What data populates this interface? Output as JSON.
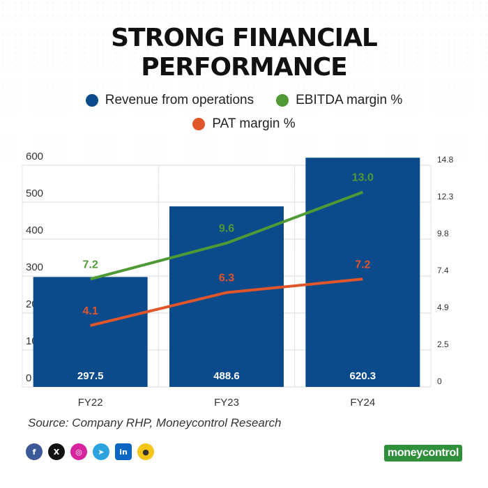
{
  "title_line1": "STRONG FINANCIAL",
  "title_line2": "PERFORMANCE",
  "legend": {
    "revenue": "Revenue from operations",
    "ebitda": "EBITDA margin %",
    "pat": "PAT margin %"
  },
  "colors": {
    "revenue": "#0b4a8b",
    "ebitda": "#4f9a35",
    "pat": "#e0562a"
  },
  "chart_data": {
    "type": "bar",
    "categories": [
      "FY22",
      "FY23",
      "FY24"
    ],
    "series": [
      {
        "name": "Revenue from operations",
        "type": "bar",
        "axis": "left",
        "values": [
          297.5,
          488.6,
          620.3
        ],
        "labels": [
          "297.5",
          "488.6",
          "620.3"
        ]
      },
      {
        "name": "EBITDA margin %",
        "type": "line",
        "axis": "right",
        "values": [
          7.2,
          9.6,
          13.0
        ],
        "labels": [
          "7.2",
          "9.6",
          "13.0"
        ]
      },
      {
        "name": "PAT margin %",
        "type": "line",
        "axis": "right",
        "values": [
          4.1,
          6.3,
          7.2
        ],
        "labels": [
          "4.1",
          "6.3",
          "7.2"
        ]
      }
    ],
    "y_left": {
      "ticks": [
        "0",
        "100",
        "200",
        "300",
        "400",
        "500",
        "600"
      ],
      "range": [
        0,
        600
      ]
    },
    "y_right": {
      "ticks": [
        "0",
        "2.5",
        "4.9",
        "7.4",
        "9.8",
        "12.3",
        "14.8"
      ],
      "range": [
        0,
        14.8
      ]
    },
    "grid": true,
    "legend_position": "top"
  },
  "source": "Source: Company RHP, Moneycontrol Research",
  "socials": [
    "f",
    "X",
    "ig",
    "tg",
    "in",
    "kt"
  ],
  "brand": "moneycontrol"
}
